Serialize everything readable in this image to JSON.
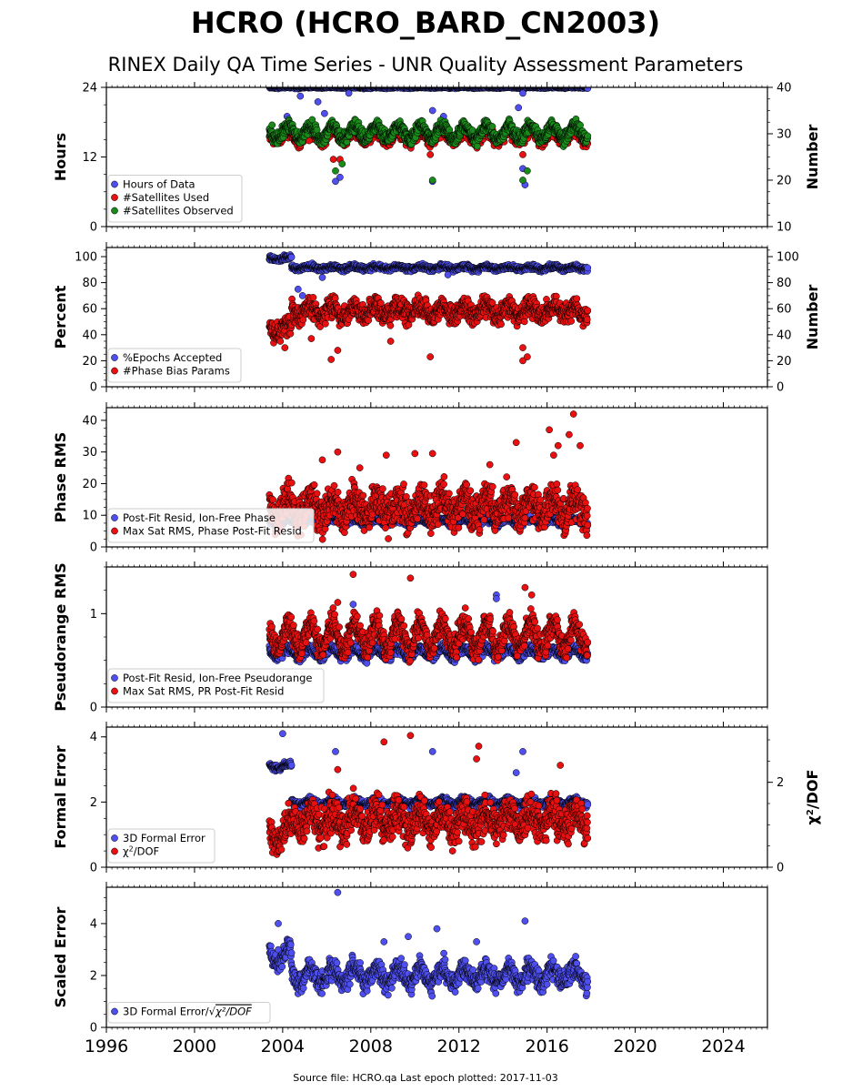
{
  "figure": {
    "title": "HCRO (HCRO_BARD_CN2003)",
    "subtitle": "RINEX Daily QA Time Series - UNR Quality Assessment Parameters",
    "footer": "Source file: HCRO.qa Last epoch plotted: 2017-11-03"
  },
  "colors": {
    "blue": "#4f4ff0",
    "red": "#e81010",
    "green": "#1a8a1a",
    "edge": "#000000"
  },
  "chart_data": [
    {
      "type": "scatter",
      "panel": "hours",
      "xlim": [
        1996,
        2026
      ],
      "x_ticks": [
        "1996",
        "2000",
        "2004",
        "2008",
        "2012",
        "2016",
        "2020",
        "2024"
      ],
      "ylabel": "Hours",
      "ylim": [
        0,
        24
      ],
      "y_ticks": [
        "0",
        "12",
        "24"
      ],
      "ylabel_right": "Number",
      "ylim_right": [
        10,
        40
      ],
      "y_ticks_right": [
        "10",
        "20",
        "30",
        "40"
      ],
      "legend_position": "lower-left",
      "data_range": [
        2003.4,
        2017.84
      ],
      "series": [
        {
          "name": "Hours of Data",
          "color": "blue",
          "axis": "left",
          "base": 24.0,
          "amp": 0.05,
          "noise": 0.1,
          "outliers": [
            [
              2004.2,
              19.0
            ],
            [
              2004.8,
              22.5
            ],
            [
              2005.3,
              17.5
            ],
            [
              2005.6,
              21.5
            ],
            [
              2005.9,
              19.5
            ],
            [
              2006.5,
              16.5
            ],
            [
              2006.6,
              8.5
            ],
            [
              2006.4,
              7.8
            ],
            [
              2007.0,
              23.0
            ],
            [
              2010.8,
              20.0
            ],
            [
              2011.3,
              19.0
            ],
            [
              2014.7,
              20.5
            ],
            [
              2014.9,
              23.0
            ],
            [
              2015.0,
              7.2
            ],
            [
              2014.9,
              10.0
            ],
            [
              2010.8,
              7.8
            ]
          ]
        },
        {
          "name": "#Satellites Used",
          "color": "red",
          "axis": "right",
          "base": 29.5,
          "amp": 1.2,
          "noise": 0.8,
          "outliers": [
            [
              2006.3,
              24.5
            ],
            [
              2006.6,
              24.5
            ],
            [
              2010.7,
              25.5
            ],
            [
              2014.9,
              25.5
            ],
            [
              2005.2,
              28.5
            ]
          ]
        },
        {
          "name": "#Satellites Observed",
          "color": "green",
          "axis": "right",
          "base": 30.3,
          "amp": 1.4,
          "noise": 0.8,
          "outliers": [
            [
              2006.4,
              22.0
            ],
            [
              2006.7,
              23.5
            ],
            [
              2010.8,
              20.0
            ],
            [
              2014.9,
              20.0
            ],
            [
              2015.1,
              22.0
            ]
          ]
        }
      ]
    },
    {
      "type": "scatter",
      "panel": "percent",
      "xlim": [
        1996,
        2026
      ],
      "x_ticks": [
        "1996",
        "2000",
        "2004",
        "2008",
        "2012",
        "2016",
        "2020",
        "2024"
      ],
      "ylabel": "Percent",
      "ylim": [
        0,
        107
      ],
      "y_ticks": [
        "0",
        "20",
        "40",
        "60",
        "80",
        "100"
      ],
      "ylabel_right": "Number",
      "ylim_right": [
        0,
        107
      ],
      "y_ticks_right": [
        "0",
        "20",
        "40",
        "60",
        "80",
        "100"
      ],
      "legend_position": "lower-left",
      "data_range": [
        2003.4,
        2017.84
      ],
      "series": [
        {
          "name": "%Epochs Accepted",
          "color": "blue",
          "axis": "left",
          "base": 91.5,
          "amp": 1.0,
          "noise": 1.2,
          "early": [
            2004.4,
            98.5
          ],
          "outliers": [
            [
              2004.7,
              75.0
            ],
            [
              2004.9,
              70.0
            ],
            [
              2011.5,
              86.0
            ],
            [
              2005.8,
              84.0
            ]
          ]
        },
        {
          "name": "#Phase Bias Params",
          "color": "red",
          "axis": "right",
          "base": 58.0,
          "amp": 4.0,
          "noise": 5.0,
          "early": [
            2004.4,
            45.0
          ],
          "outliers": [
            [
              2004.1,
              30.0
            ],
            [
              2005.3,
              37.0
            ],
            [
              2006.2,
              21.0
            ],
            [
              2006.5,
              28.0
            ],
            [
              2008.9,
              35.0
            ],
            [
              2010.7,
              23.0
            ],
            [
              2014.9,
              30.0
            ],
            [
              2014.9,
              20.0
            ],
            [
              2015.1,
              23.0
            ]
          ]
        }
      ]
    },
    {
      "type": "scatter",
      "panel": "phase-rms",
      "xlim": [
        1996,
        2026
      ],
      "x_ticks": [
        "1996",
        "2000",
        "2004",
        "2008",
        "2012",
        "2016",
        "2020",
        "2024"
      ],
      "ylabel": "Phase RMS",
      "ylim": [
        0,
        44
      ],
      "y_ticks": [
        "0",
        "10",
        "20",
        "30",
        "40"
      ],
      "legend_position": "lower-left",
      "data_range": [
        2003.4,
        2017.84
      ],
      "series": [
        {
          "name": "Post-Fit Resid, Ion-Free Phase",
          "color": "blue",
          "axis": "left",
          "base": 8.0,
          "amp": 0.8,
          "noise": 0.6,
          "outliers": []
        },
        {
          "name": "Max Sat RMS, Phase Post-Fit Resid",
          "color": "red",
          "axis": "left",
          "base": 12.5,
          "amp": 3.0,
          "noise": 3.5,
          "outliers": [
            [
              2005.8,
              27.5
            ],
            [
              2006.5,
              30.0
            ],
            [
              2008.7,
              29.0
            ],
            [
              2010.0,
              29.5
            ],
            [
              2010.8,
              29.5
            ],
            [
              2014.6,
              33.0
            ],
            [
              2016.1,
              37.0
            ],
            [
              2016.5,
              32.0
            ],
            [
              2017.0,
              35.5
            ],
            [
              2017.2,
              42.0
            ],
            [
              2017.5,
              32.0
            ],
            [
              2016.3,
              29.0
            ],
            [
              2007.5,
              25.0
            ],
            [
              2013.4,
              26.0
            ]
          ]
        }
      ]
    },
    {
      "type": "scatter",
      "panel": "pseudorange-rms",
      "xlim": [
        1996,
        2026
      ],
      "x_ticks": [
        "1996",
        "2000",
        "2004",
        "2008",
        "2012",
        "2016",
        "2020",
        "2024"
      ],
      "ylabel": "Pseudorange RMS",
      "ylim": [
        0,
        1.5
      ],
      "y_ticks": [
        "0",
        "1"
      ],
      "legend_position": "lower-left",
      "data_range": [
        2003.4,
        2017.84
      ],
      "series": [
        {
          "name": "Post-Fit Resid, Ion-Free Pseudorange",
          "color": "blue",
          "axis": "left",
          "base": 0.58,
          "amp": 0.05,
          "noise": 0.03,
          "outliers": [
            [
              2007.2,
              1.1
            ],
            [
              2013.7,
              1.2
            ],
            [
              2013.7,
              1.16
            ]
          ]
        },
        {
          "name": "Max Sat RMS, PR Post-Fit Resid",
          "color": "red",
          "axis": "left",
          "base": 0.76,
          "amp": 0.14,
          "noise": 0.08,
          "outliers": [
            [
              2007.2,
              1.42
            ],
            [
              2009.8,
              1.38
            ],
            [
              2015.0,
              1.28
            ],
            [
              2015.3,
              1.2
            ],
            [
              2006.5,
              1.12
            ]
          ]
        }
      ]
    },
    {
      "type": "scatter",
      "panel": "formal-error",
      "xlim": [
        1996,
        2026
      ],
      "x_ticks": [
        "1996",
        "2000",
        "2004",
        "2008",
        "2012",
        "2016",
        "2020",
        "2024"
      ],
      "ylabel": "Formal Error",
      "ylim": [
        0,
        4.3
      ],
      "y_ticks": [
        "0",
        "2",
        "4"
      ],
      "ylabel_right_prefix": "χ",
      "ylabel_right_sup": "2",
      "ylabel_right_suffix": "/DOF",
      "ylim_right": [
        0,
        3.3
      ],
      "y_ticks_right": [
        "0",
        "2"
      ],
      "legend_position": "lower-left",
      "data_range": [
        2003.4,
        2017.84
      ],
      "series": [
        {
          "name_prefix": "3D Formal Error",
          "color": "blue",
          "axis": "left",
          "base": 2.0,
          "amp": 0.08,
          "noise": 0.06,
          "early": [
            2004.4,
            3.1
          ],
          "outliers": [
            [
              2004.0,
              4.1
            ],
            [
              2006.4,
              3.55
            ],
            [
              2010.8,
              3.55
            ],
            [
              2014.9,
              3.55
            ],
            [
              2014.6,
              2.9
            ]
          ]
        },
        {
          "name_prefix": "χ",
          "name_sup": "2",
          "name_suffix": "/DOF",
          "color": "red",
          "axis": "right",
          "base": 1.1,
          "amp": 0.2,
          "noise": 0.25,
          "early": [
            2004.4,
            0.8
          ],
          "outliers": [
            [
              2009.8,
              3.1
            ],
            [
              2008.6,
              2.95
            ],
            [
              2012.8,
              2.55
            ],
            [
              2016.6,
              2.4
            ],
            [
              2006.5,
              2.3
            ],
            [
              2012.9,
              2.85
            ],
            [
              2013.7,
              0.55
            ]
          ]
        }
      ]
    },
    {
      "type": "scatter",
      "panel": "scaled-error",
      "xlim": [
        1996,
        2026
      ],
      "x_ticks": [
        "1996",
        "2000",
        "2004",
        "2008",
        "2012",
        "2016",
        "2020",
        "2024"
      ],
      "ylabel": "Scaled Error",
      "ylim": [
        0,
        5.4
      ],
      "y_ticks": [
        "0",
        "2",
        "4"
      ],
      "legend_position": "lower-left",
      "data_range": [
        2003.4,
        2017.84
      ],
      "series": [
        {
          "name_prefix": "3D Formal Error/",
          "name_radical": "χ²/DOF",
          "color": "blue",
          "axis": "left",
          "base": 2.0,
          "amp": 0.3,
          "noise": 0.25,
          "early": [
            2004.4,
            2.8
          ],
          "outliers": [
            [
              2006.5,
              5.2
            ],
            [
              2015.0,
              4.1
            ],
            [
              2011.0,
              3.8
            ],
            [
              2003.8,
              4.0
            ],
            [
              2009.7,
              3.5
            ],
            [
              2008.6,
              3.3
            ],
            [
              2012.8,
              3.3
            ]
          ]
        }
      ]
    }
  ]
}
